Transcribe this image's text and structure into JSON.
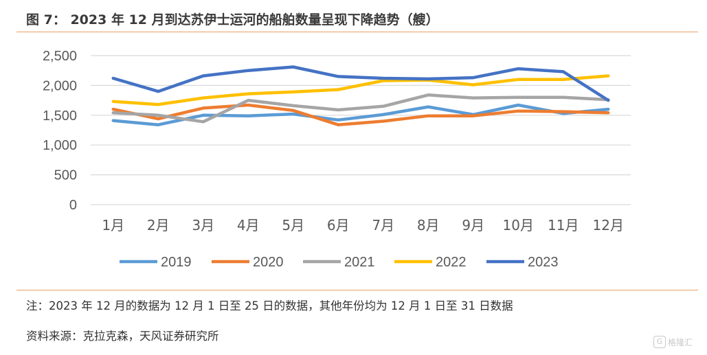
{
  "title": "图 7： 2023 年 12 月到达苏伊士运河的船舶数量呈现下降趋势（艘）",
  "note": "注：2023 年 12 月的数据为 12 月 1 日至 25 日的数据，其他年份均为 12 月 1 日至 31 日数据",
  "source": "资料来源：克拉克森，天风证券研究所",
  "watermark": {
    "icon": "g-logo-icon",
    "text": "格隆汇"
  },
  "chart_data": {
    "type": "line",
    "categories": [
      "1月",
      "2月",
      "3月",
      "4月",
      "5月",
      "6月",
      "7月",
      "8月",
      "9月",
      "10月",
      "11月",
      "12月"
    ],
    "ylim": [
      0,
      2500
    ],
    "yticks": [
      0,
      500,
      1000,
      1500,
      2000,
      2500
    ],
    "ytick_labels": [
      "0",
      "500",
      "1,000",
      "1,500",
      "2,000",
      "2,500"
    ],
    "grid": true,
    "legend_position": "bottom",
    "series": [
      {
        "name": "2019",
        "color": "#5b9bd5",
        "values": [
          1410,
          1340,
          1500,
          1490,
          1520,
          1420,
          1510,
          1640,
          1510,
          1670,
          1530,
          1600
        ]
      },
      {
        "name": "2020",
        "color": "#ed7d31",
        "values": [
          1600,
          1440,
          1620,
          1670,
          1580,
          1340,
          1400,
          1490,
          1490,
          1570,
          1560,
          1540
        ]
      },
      {
        "name": "2021",
        "color": "#a5a5a5",
        "values": [
          1540,
          1500,
          1390,
          1750,
          1660,
          1590,
          1650,
          1840,
          1790,
          1800,
          1800,
          1760
        ]
      },
      {
        "name": "2022",
        "color": "#ffc000",
        "values": [
          1730,
          1680,
          1790,
          1860,
          1890,
          1930,
          2080,
          2090,
          2010,
          2100,
          2100,
          2160
        ]
      },
      {
        "name": "2023",
        "color": "#4472c4",
        "values": [
          2120,
          1900,
          2160,
          2250,
          2310,
          2150,
          2120,
          2110,
          2130,
          2280,
          2230,
          1750
        ]
      }
    ]
  }
}
